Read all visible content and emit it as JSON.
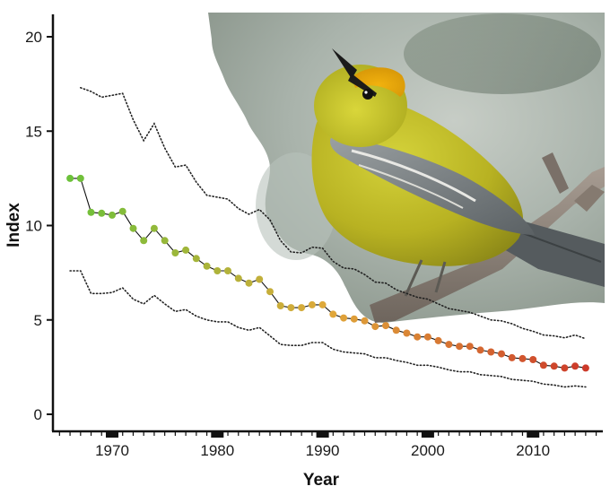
{
  "chart_data": {
    "type": "line",
    "title": "",
    "xlabel": "Year",
    "ylabel": "Index",
    "xlim": [
      1965,
      2016
    ],
    "ylim": [
      0,
      21
    ],
    "x_ticks": [
      1970,
      1980,
      1990,
      2000,
      2010
    ],
    "y_ticks": [
      0,
      5,
      10,
      15,
      20
    ],
    "grid": false,
    "colors": {
      "point_start": "#6cc13a",
      "point_mid": "#e0a83a",
      "point_end": "#cc3a2a",
      "line": "#111111",
      "ci_line": "#222222"
    },
    "illustration": "blue-winged-warbler-photo",
    "series": [
      {
        "x": [
          1966,
          1967,
          1968,
          1969,
          1970,
          1971,
          1972,
          1973,
          1974,
          1975,
          1976,
          1977,
          1978,
          1979,
          1980,
          1981,
          1982,
          1983,
          1984,
          1985,
          1986,
          1987,
          1988,
          1989,
          1990,
          1991,
          1992,
          1993,
          1994,
          1995,
          1996,
          1997,
          1998,
          1999,
          2000,
          2001,
          2002,
          2003,
          2004,
          2005,
          2006,
          2007,
          2008,
          2009,
          2010,
          2011,
          2012,
          2013,
          2014,
          2015
        ],
        "values": [
          12.5,
          12.5,
          10.7,
          10.65,
          10.55,
          10.75,
          9.85,
          9.2,
          9.85,
          9.2,
          8.55,
          8.7,
          8.25,
          7.85,
          7.6,
          7.6,
          7.2,
          6.95,
          7.15,
          6.5,
          5.75,
          5.65,
          5.65,
          5.8,
          5.8,
          5.3,
          5.1,
          5.05,
          4.95,
          4.65,
          4.7,
          4.45,
          4.3,
          4.1,
          4.1,
          3.9,
          3.7,
          3.6,
          3.6,
          3.4,
          3.3,
          3.2,
          3.0,
          2.95,
          2.9,
          2.6,
          2.55,
          2.45,
          2.55,
          2.45
        ]
      },
      {
        "x": [
          1966,
          1967,
          1968,
          1969,
          1970,
          1971,
          1972,
          1973,
          1974,
          1975,
          1976,
          1977,
          1978,
          1979,
          1980,
          1981,
          1982,
          1983,
          1984,
          1985,
          1986,
          1987,
          1988,
          1989,
          1990,
          1991,
          1992,
          1993,
          1994,
          1995,
          1996,
          1997,
          1998,
          1999,
          2000,
          2001,
          2002,
          2003,
          2004,
          2005,
          2006,
          2007,
          2008,
          2009,
          2010,
          2011,
          2012,
          2013,
          2014,
          2015
        ],
        "values": [
          7.6,
          7.6,
          6.4,
          6.4,
          6.45,
          6.7,
          6.1,
          5.85,
          6.3,
          5.85,
          5.45,
          5.55,
          5.2,
          5.0,
          4.9,
          4.9,
          4.6,
          4.45,
          4.6,
          4.15,
          3.7,
          3.65,
          3.65,
          3.8,
          3.8,
          3.45,
          3.3,
          3.25,
          3.2,
          3.0,
          3.0,
          2.85,
          2.75,
          2.6,
          2.6,
          2.5,
          2.35,
          2.25,
          2.25,
          2.1,
          2.05,
          2.0,
          1.85,
          1.8,
          1.75,
          1.6,
          1.55,
          1.45,
          1.5,
          1.45
        ]
      },
      {
        "x": [
          1967,
          1968,
          1969,
          1970,
          1971,
          1972,
          1973,
          1974,
          1975,
          1976,
          1977,
          1978,
          1979,
          1980,
          1981,
          1982,
          1983,
          1984,
          1985,
          1986,
          1987,
          1988,
          1989,
          1990,
          1991,
          1992,
          1993,
          1994,
          1995,
          1996,
          1997,
          1998,
          1999,
          2000,
          2001,
          2002,
          2003,
          2004,
          2005,
          2006,
          2007,
          2008,
          2009,
          2010,
          2011,
          2012,
          2013,
          2014,
          2015
        ],
        "values": [
          17.3,
          17.1,
          16.8,
          16.9,
          17.0,
          15.6,
          14.5,
          15.4,
          14.1,
          13.1,
          13.2,
          12.3,
          11.6,
          11.5,
          11.4,
          10.9,
          10.6,
          10.85,
          10.3,
          9.2,
          8.6,
          8.55,
          8.85,
          8.8,
          8.1,
          7.75,
          7.7,
          7.4,
          7.0,
          6.95,
          6.6,
          6.4,
          6.2,
          6.1,
          5.85,
          5.6,
          5.5,
          5.4,
          5.2,
          5.0,
          4.95,
          4.8,
          4.55,
          4.4,
          4.2,
          4.15,
          4.05,
          4.2,
          4.0
        ]
      }
    ]
  }
}
